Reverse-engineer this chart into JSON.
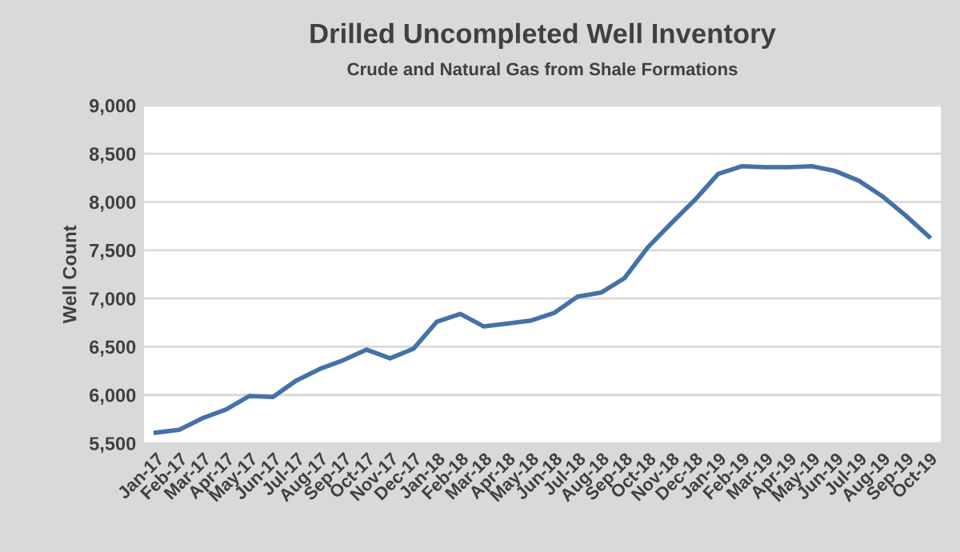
{
  "chart_data": {
    "type": "line",
    "title": "Drilled Uncompleted Well Inventory",
    "subtitle": "Crude and Natural Gas from Shale Formations",
    "ylabel": "Well Count",
    "categories": [
      "Jan-17",
      "Feb-17",
      "Mar-17",
      "Apr-17",
      "May-17",
      "Jun-17",
      "Jul-17",
      "Aug-17",
      "Sep-17",
      "Oct-17",
      "Nov-17",
      "Dec-17",
      "Jan-18",
      "Feb-18",
      "Mar-18",
      "Apr-18",
      "May-18",
      "Jun-18",
      "Jul-18",
      "Aug-18",
      "Sep-18",
      "Oct-18",
      "Nov-18",
      "Dec-18",
      "Jan-19",
      "Feb-19",
      "Mar-19",
      "Apr-19",
      "May-19",
      "Jun-19",
      "Jul-19",
      "Aug-19",
      "Sep-19",
      "Oct-19"
    ],
    "series": [
      {
        "color": "#4472a8",
        "values": [
          5610,
          5640,
          5760,
          5850,
          5990,
          5980,
          6150,
          6270,
          6360,
          6470,
          6380,
          6480,
          6760,
          6840,
          6710,
          6740,
          6770,
          6850,
          7020,
          7060,
          7210,
          7530,
          7780,
          8020,
          8290,
          8370,
          8360,
          8360,
          8370,
          8320,
          8220,
          8060,
          7860,
          7640
        ]
      }
    ],
    "ylim": [
      5500,
      9000
    ],
    "yticks": [
      {
        "value": 5500,
        "label": "5,500"
      },
      {
        "value": 6000,
        "label": "6,000"
      },
      {
        "value": 6500,
        "label": "6,500"
      },
      {
        "value": 7000,
        "label": "7,000"
      },
      {
        "value": 7500,
        "label": "7,500"
      },
      {
        "value": 8000,
        "label": "8,000"
      },
      {
        "value": 8500,
        "label": "8,500"
      },
      {
        "value": 9000,
        "label": "9,000"
      }
    ],
    "grid": "y",
    "legend": false,
    "marker": "none",
    "line_style": "solid"
  }
}
